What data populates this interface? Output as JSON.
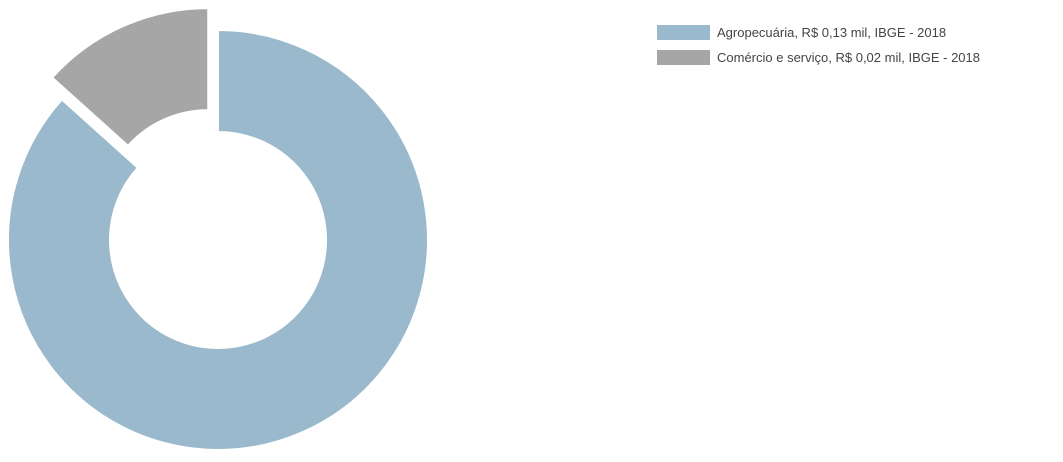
{
  "chart_data": {
    "type": "pie",
    "variant": "donut",
    "legend_position": "right",
    "series": [
      {
        "name": "Agropecuária, R$ 0,13 mil, IBGE - 2018",
        "value": 0.13,
        "color": "#9ab9cc"
      },
      {
        "name": "Comércio e serviço, R$ 0,02 mil, IBGE - 2018",
        "value": 0.02,
        "color": "#a6a6a6"
      }
    ],
    "exploded_slice": 1
  }
}
